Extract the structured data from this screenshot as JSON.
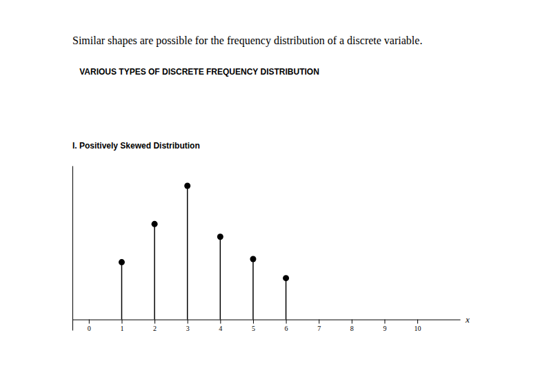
{
  "chart_data": {
    "type": "lollipop",
    "title": "Similar shapes are possible for the frequency distribution of a discrete variable.",
    "subtitle": "VARIOUS TYPES OF DISCRETE FREQUENCY DISTRIBUTION",
    "annotations": [
      "I.  Positively Skewed Distribution"
    ],
    "x_label": "x",
    "x": [
      0,
      1,
      2,
      3,
      4,
      5,
      6,
      7,
      8,
      9,
      10
    ],
    "values": [
      0,
      0.18,
      0.3,
      0.42,
      0.26,
      0.19,
      0.13,
      0,
      0,
      0,
      0
    ],
    "xlim": [
      -0.5,
      11.3
    ],
    "xticks": [
      0,
      1,
      2,
      3,
      4,
      5,
      6,
      7,
      8,
      9,
      10
    ],
    "ylim": [
      -0.0336,
      0.483
    ],
    "tick_labels": "x",
    "color": "#000000",
    "marker": "circle",
    "grid": false
  }
}
